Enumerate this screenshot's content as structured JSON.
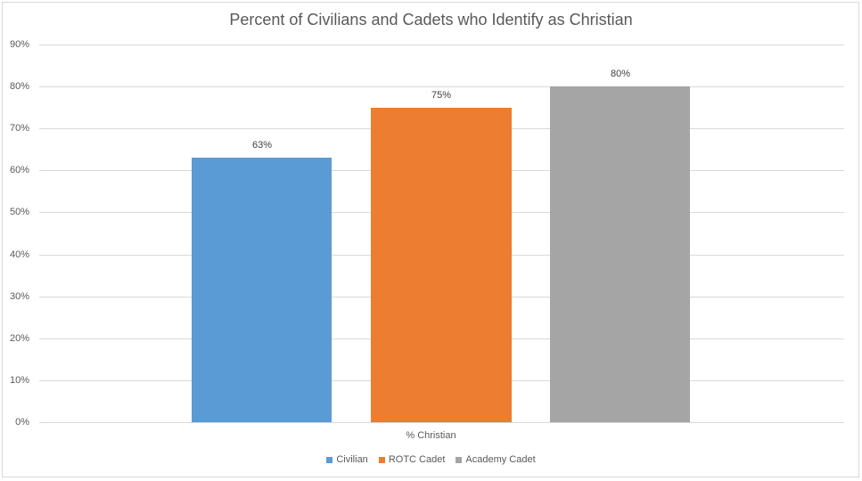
{
  "chart_data": {
    "type": "bar",
    "title": "Percent of Civilians and Cadets who Identify as Christian",
    "categories": [
      "% Christian"
    ],
    "series": [
      {
        "name": "Civilian",
        "values": [
          63
        ],
        "color": "#5b9bd5",
        "label": "63%"
      },
      {
        "name": "ROTC Cadet",
        "values": [
          75
        ],
        "color": "#ed7d31",
        "label": "75%"
      },
      {
        "name": "Academy Cadet",
        "values": [
          80
        ],
        "color": "#a5a5a5",
        "label": "80%"
      }
    ],
    "xlabel": "% Christian",
    "ylabel": "",
    "ylim": [
      0,
      90
    ],
    "yticks": [
      "0%",
      "10%",
      "20%",
      "30%",
      "40%",
      "50%",
      "60%",
      "70%",
      "80%",
      "90%"
    ],
    "grid": true,
    "legend_position": "bottom"
  }
}
